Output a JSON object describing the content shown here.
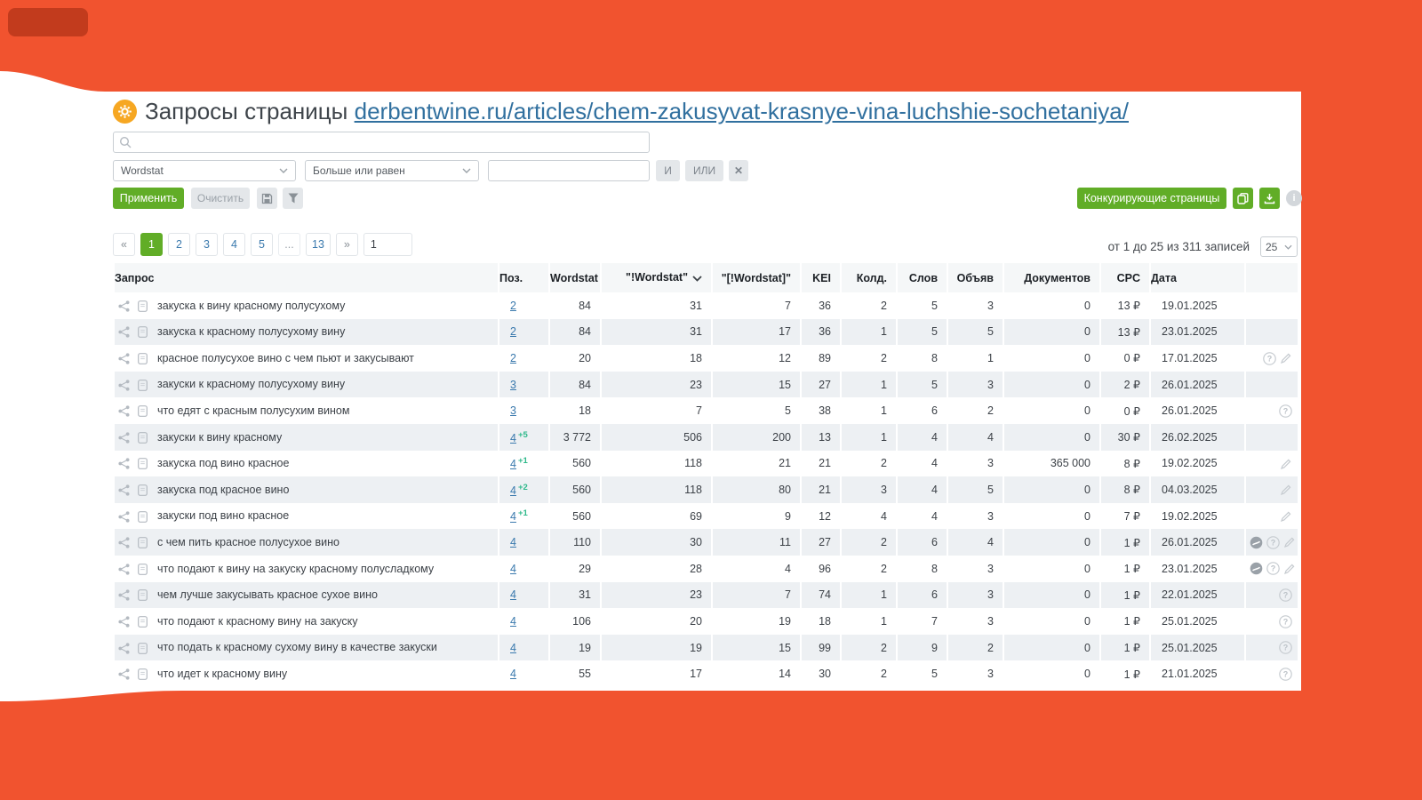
{
  "colors": {
    "background": "#f1532f",
    "corner_shape": "#c23b1d",
    "accent_green": "#61ad27",
    "link_blue": "#31709f",
    "delta_green": "#2fb98b",
    "gear_orange": "#f6a722"
  },
  "header": {
    "title": "Запросы страницы",
    "url": "derbentwine.ru/articles/chem-zakusyvat-krasnye-vina-luchshie-sochetaniya/"
  },
  "filters": {
    "search_value": "",
    "field_select": "Wordstat",
    "operator_select": "Больше или равен",
    "value_input": "",
    "and_label": "И",
    "or_label": "ИЛИ",
    "remove_label": "✕",
    "apply_label": "Применить",
    "clear_label": "Очистить",
    "competitors_label": "Конкурирующие страницы",
    "info_label": "i"
  },
  "pagination": {
    "prev": "«",
    "next": "»",
    "pages": [
      "1",
      "2",
      "3",
      "4",
      "5",
      "...",
      "13"
    ],
    "active_page": "1",
    "goto_value": "1",
    "summary": "от 1 до 25 из 311 записей",
    "page_size": "25"
  },
  "table": {
    "columns": [
      "Запрос",
      "Поз.",
      "Wordstat",
      "\"!Wordstat\"",
      "\"[!Wordstat]\"",
      "KEI",
      "Колд.",
      "Слов",
      "Объяв",
      "Документов",
      "CPC",
      "Дата"
    ],
    "sort_column": "\"!Wordstat\"",
    "row_lead_icons": [
      "share-icon",
      "document-icon"
    ],
    "rows": [
      {
        "query": "закуска к вину красному полусухому",
        "pos": "2",
        "delta": "",
        "wordstat": "84",
        "exact": "31",
        "precise": "7",
        "kei": "36",
        "kold": "2",
        "slov": "5",
        "obyav": "3",
        "docs": "0",
        "cpc": "13 ₽",
        "date": "19.01.2025",
        "icons": []
      },
      {
        "query": "закуска к красному полусухому вину",
        "pos": "2",
        "delta": "",
        "wordstat": "84",
        "exact": "31",
        "precise": "17",
        "kei": "36",
        "kold": "1",
        "slov": "5",
        "obyav": "5",
        "docs": "0",
        "cpc": "13 ₽",
        "date": "23.01.2025",
        "icons": []
      },
      {
        "query": "красное полусухое вино с чем пьют и закусывают",
        "pos": "2",
        "delta": "",
        "wordstat": "20",
        "exact": "18",
        "precise": "12",
        "kei": "89",
        "kold": "2",
        "slov": "8",
        "obyav": "1",
        "docs": "0",
        "cpc": "0 ₽",
        "date": "17.01.2025",
        "icons": [
          "help-icon",
          "pencil-icon"
        ]
      },
      {
        "query": "закуски к красному полусухому вину",
        "pos": "3",
        "delta": "",
        "wordstat": "84",
        "exact": "23",
        "precise": "15",
        "kei": "27",
        "kold": "1",
        "slov": "5",
        "obyav": "3",
        "docs": "0",
        "cpc": "2 ₽",
        "date": "26.01.2025",
        "icons": []
      },
      {
        "query": "что едят с красным полусухим вином",
        "pos": "3",
        "delta": "",
        "wordstat": "18",
        "exact": "7",
        "precise": "5",
        "kei": "38",
        "kold": "1",
        "slov": "6",
        "obyav": "2",
        "docs": "0",
        "cpc": "0 ₽",
        "date": "26.01.2025",
        "icons": [
          "help-icon"
        ]
      },
      {
        "query": "закуски к вину красному",
        "pos": "4",
        "delta": "+5",
        "wordstat": "3 772",
        "exact": "506",
        "precise": "200",
        "kei": "13",
        "kold": "1",
        "slov": "4",
        "obyav": "4",
        "docs": "0",
        "cpc": "30 ₽",
        "date": "26.02.2025",
        "icons": []
      },
      {
        "query": "закуска под вино красное",
        "pos": "4",
        "delta": "+1",
        "wordstat": "560",
        "exact": "118",
        "precise": "21",
        "kei": "21",
        "kold": "2",
        "slov": "4",
        "obyav": "3",
        "docs": "365 000",
        "cpc": "8 ₽",
        "date": "19.02.2025",
        "icons": [
          "pencil-icon"
        ]
      },
      {
        "query": "закуска под красное вино",
        "pos": "4",
        "delta": "+2",
        "wordstat": "560",
        "exact": "118",
        "precise": "80",
        "kei": "21",
        "kold": "3",
        "slov": "4",
        "obyav": "5",
        "docs": "0",
        "cpc": "8 ₽",
        "date": "04.03.2025",
        "icons": [
          "pencil-icon"
        ]
      },
      {
        "query": "закуски под вино красное",
        "pos": "4",
        "delta": "+1",
        "wordstat": "560",
        "exact": "69",
        "precise": "9",
        "kei": "12",
        "kold": "4",
        "slov": "4",
        "obyav": "3",
        "docs": "0",
        "cpc": "7 ₽",
        "date": "19.02.2025",
        "icons": [
          "pencil-icon"
        ]
      },
      {
        "query": "с чем пить красное полусухое вино",
        "pos": "4",
        "delta": "",
        "wordstat": "110",
        "exact": "30",
        "precise": "11",
        "kei": "27",
        "kold": "2",
        "slov": "6",
        "obyav": "4",
        "docs": "0",
        "cpc": "1 ₽",
        "date": "26.01.2025",
        "icons": [
          "globe-icon",
          "help-icon",
          "pencil-icon"
        ]
      },
      {
        "query": "что подают к вину на закуску красному полусладкому",
        "pos": "4",
        "delta": "",
        "wordstat": "29",
        "exact": "28",
        "precise": "4",
        "kei": "96",
        "kold": "2",
        "slov": "8",
        "obyav": "3",
        "docs": "0",
        "cpc": "1 ₽",
        "date": "23.01.2025",
        "icons": [
          "globe-icon",
          "help-icon",
          "pencil-icon"
        ]
      },
      {
        "query": "чем лучше закусывать красное сухое вино",
        "pos": "4",
        "delta": "",
        "wordstat": "31",
        "exact": "23",
        "precise": "7",
        "kei": "74",
        "kold": "1",
        "slov": "6",
        "obyav": "3",
        "docs": "0",
        "cpc": "1 ₽",
        "date": "22.01.2025",
        "icons": [
          "help-icon"
        ]
      },
      {
        "query": "что подают к красному вину на закуску",
        "pos": "4",
        "delta": "",
        "wordstat": "106",
        "exact": "20",
        "precise": "19",
        "kei": "18",
        "kold": "1",
        "slov": "7",
        "obyav": "3",
        "docs": "0",
        "cpc": "1 ₽",
        "date": "25.01.2025",
        "icons": [
          "help-icon"
        ]
      },
      {
        "query": "что подать к красному сухому вину в качестве закуски",
        "pos": "4",
        "delta": "",
        "wordstat": "19",
        "exact": "19",
        "precise": "15",
        "kei": "99",
        "kold": "2",
        "slov": "9",
        "obyav": "2",
        "docs": "0",
        "cpc": "1 ₽",
        "date": "25.01.2025",
        "icons": [
          "help-icon"
        ]
      },
      {
        "query": "что идет к красному вину",
        "pos": "4",
        "delta": "",
        "wordstat": "55",
        "exact": "17",
        "precise": "14",
        "kei": "30",
        "kold": "2",
        "slov": "5",
        "obyav": "3",
        "docs": "0",
        "cpc": "1 ₽",
        "date": "21.01.2025",
        "icons": [
          "help-icon"
        ]
      }
    ]
  }
}
